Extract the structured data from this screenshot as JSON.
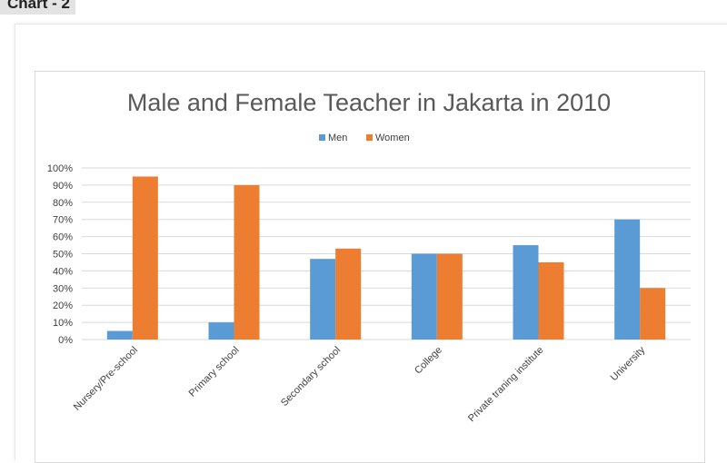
{
  "page": {
    "heading": "Chart - 2"
  },
  "colors": {
    "men": "#5b9bd5",
    "women": "#ed7d31",
    "grid": "#d9d9d9",
    "text": "#404040",
    "title": "#595959"
  },
  "chart_data": {
    "type": "bar",
    "title": "Male and Female Teacher in Jakarta in 2010",
    "xlabel": "",
    "ylabel": "",
    "ylim": [
      0,
      100
    ],
    "y_ticks": [
      0,
      10,
      20,
      30,
      40,
      50,
      60,
      70,
      80,
      90,
      100
    ],
    "y_tick_labels": [
      "0%",
      "10%",
      "20%",
      "30%",
      "40%",
      "50%",
      "60%",
      "70%",
      "80%",
      "90%",
      "100%"
    ],
    "grid": true,
    "legend_position": "top",
    "categories": [
      "Nursery/Pre-school",
      "Primary school",
      "Secondary school",
      "College",
      "Private traning institute",
      "University"
    ],
    "series": [
      {
        "name": "Men",
        "values": [
          5,
          10,
          47,
          50,
          55,
          70
        ]
      },
      {
        "name": "Women",
        "values": [
          95,
          90,
          53,
          50,
          45,
          30
        ]
      }
    ]
  }
}
